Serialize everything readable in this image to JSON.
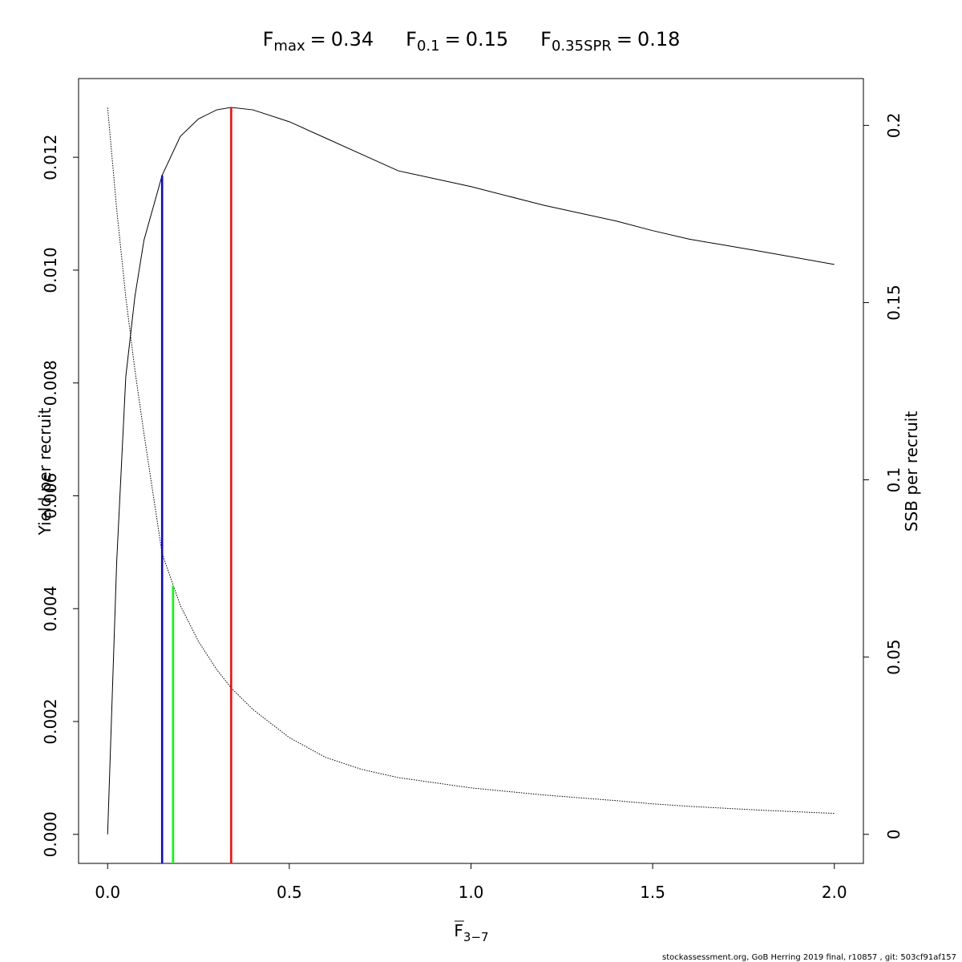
{
  "chart_data": {
    "type": "line",
    "title_refs": [
      {
        "symbol": "F",
        "subscript": "max",
        "equals": "=",
        "value": 0.34,
        "color": "#ff0000",
        "line_top": 0.012884,
        "axis": "y"
      },
      {
        "symbol": "F",
        "subscript": "0.1",
        "equals": "=",
        "value": 0.15,
        "color": "#0000ff",
        "line_top": 0.01168,
        "axis": "y"
      },
      {
        "symbol": "F",
        "subscript": "0.35SPR",
        "equals": "=",
        "value": 0.18,
        "color": "#00ff00",
        "line_top": 0.0702,
        "axis": "y2"
      }
    ],
    "xlabel": {
      "symbol": "F",
      "subscript": "3−7"
    },
    "ylabel": "Yield per recruit",
    "y2label": "SSB per recruit",
    "footer": "stockassessment.org, GoB  Herring  2019  final, r10857 , git: 503cf91af157",
    "x": [
      0,
      0.025,
      0.05,
      0.075,
      0.1,
      0.15,
      0.2,
      0.25,
      0.3,
      0.34,
      0.4,
      0.5,
      0.6,
      0.7,
      0.8,
      1.0,
      1.2,
      1.4,
      1.5,
      1.6,
      1.8,
      2.0
    ],
    "series": [
      {
        "name": "Yield per recruit",
        "color": "#000000",
        "style": "solid",
        "values": [
          0,
          0.00484,
          0.00811,
          0.00953,
          0.01053,
          0.01168,
          0.01237,
          0.01268,
          0.01284,
          0.012884,
          0.01284,
          0.01263,
          0.01234,
          0.01205,
          0.01176,
          0.01148,
          0.01115,
          0.01087,
          0.0107,
          0.01055,
          0.01033,
          0.0101
        ]
      },
      {
        "name": "SSB per recruit",
        "color": "#000000",
        "style": "dotted",
        "axis": "y2",
        "values": [
          0.205,
          0.1763,
          0.1515,
          0.131,
          0.113,
          0.0792,
          0.0646,
          0.0544,
          0.0465,
          0.0413,
          0.0352,
          0.0273,
          0.0217,
          0.0183,
          0.016,
          0.0131,
          0.0111,
          0.0095,
          0.0086,
          0.0079,
          0.0068,
          0.0059
        ]
      }
    ],
    "xlim": [
      -0.08,
      2.08
    ],
    "xticks": [
      {
        "value": 0,
        "label": "0.0"
      },
      {
        "value": 0.5,
        "label": "0.5"
      },
      {
        "value": 1,
        "label": "1.0"
      },
      {
        "value": 1.5,
        "label": "1.5"
      },
      {
        "value": 2,
        "label": "2.0"
      }
    ],
    "ylim": [
      -0.000515,
      0.013395
    ],
    "yticks": [
      {
        "value": 0,
        "label": "0.000"
      },
      {
        "value": 0.002,
        "label": "0.002"
      },
      {
        "value": 0.004,
        "label": "0.004"
      },
      {
        "value": 0.006,
        "label": "0.006"
      },
      {
        "value": 0.008,
        "label": "0.008"
      },
      {
        "value": 0.01,
        "label": "0.010"
      },
      {
        "value": 0.012,
        "label": "0.012"
      }
    ],
    "y2lim": [
      -0.0082,
      0.2132
    ],
    "y2ticks": [
      0,
      0.05,
      0.1,
      0.15,
      0.2
    ]
  }
}
